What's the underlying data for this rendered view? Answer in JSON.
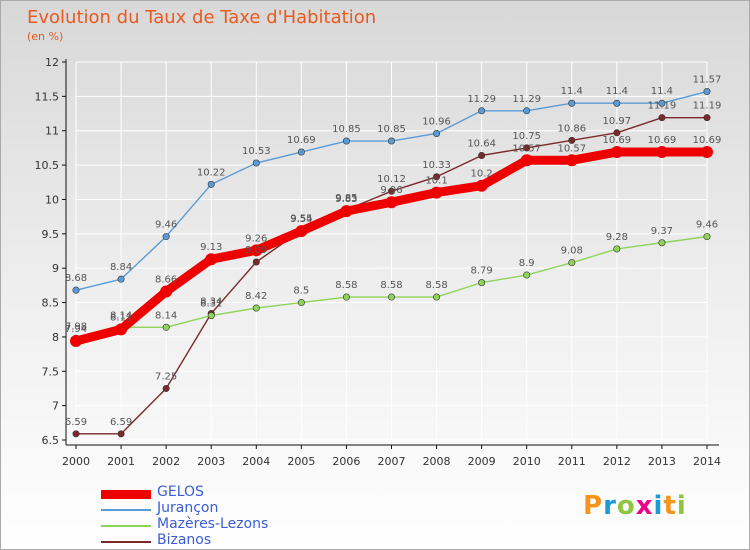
{
  "header": {
    "title": "Evolution du Taux de Taxe d'Habitation",
    "unit": "(en %)"
  },
  "logo": {
    "text": "Proxiti",
    "colors": [
      "#f7941d",
      "#1c9ad6",
      "#8dc63f",
      "#ec008c",
      "#1c9ad6",
      "#f7941d",
      "#8dc63f"
    ]
  },
  "chart_data": {
    "type": "line",
    "x": [
      "2000",
      "2001",
      "2002",
      "2003",
      "2004",
      "2005",
      "2006",
      "2007",
      "2008",
      "2009",
      "2010",
      "2011",
      "2012",
      "2013",
      "2014"
    ],
    "ylim": [
      6.5,
      12
    ],
    "yticks": [
      "6.5",
      "7",
      "7.5",
      "8",
      "8.5",
      "9",
      "9.5",
      "10",
      "10.5",
      "11",
      "11.5",
      "12"
    ],
    "grid": true,
    "legend_position": "bottom-left",
    "series": [
      {
        "name": "GELOS",
        "color": "#ee0000",
        "values": [
          7.94,
          8.11,
          8.66,
          9.13,
          9.26,
          9.54,
          9.83,
          9.96,
          10.1,
          10.2,
          10.57,
          10.57,
          10.69,
          10.69,
          10.69
        ],
        "labels": [
          "7.94",
          "8.11",
          "8.66",
          "9.13",
          "9.26",
          "9.54",
          "9.83",
          "9.96",
          "10.1",
          "10.2",
          "10.57",
          "10.57",
          "10.69",
          "10.69",
          "10.69"
        ]
      },
      {
        "name": "Jurançon",
        "color": "#5b9bd5",
        "values": [
          8.68,
          8.84,
          9.46,
          10.22,
          10.53,
          10.69,
          10.85,
          10.85,
          10.96,
          11.29,
          11.29,
          11.4,
          11.4,
          11.4,
          11.57
        ],
        "labels": [
          "8.68",
          "8.84",
          "9.46",
          "10.22",
          "10.53",
          "10.69",
          "10.85",
          "10.85",
          "10.96",
          "11.29",
          "11.29",
          "11.4",
          "11.4",
          "11.4",
          "11.57"
        ]
      },
      {
        "name": "Mazères-Lezons",
        "color": "#8fd35a",
        "values": [
          7.98,
          8.14,
          8.14,
          8.31,
          8.42,
          8.5,
          8.58,
          8.58,
          8.58,
          8.79,
          8.9,
          9.08,
          9.28,
          9.37,
          9.46
        ],
        "labels": [
          "7.98",
          "8.14",
          "8.14",
          "8.31",
          "8.42",
          "8.5",
          "8.58",
          "8.58",
          "8.58",
          "8.79",
          "8.9",
          "9.08",
          "9.28",
          "9.37",
          "9.46"
        ]
      },
      {
        "name": "Bizanos",
        "color": "#7a2a2a",
        "values": [
          6.59,
          6.59,
          7.25,
          8.34,
          9.09,
          9.55,
          9.85,
          10.12,
          10.33,
          10.64,
          10.75,
          10.86,
          10.97,
          11.19,
          11.19
        ],
        "labels": [
          "6.59",
          "6.59",
          "7.25",
          "8.34",
          "9.09",
          "9.55",
          "9.85",
          "10.12",
          "10.33",
          "10.64",
          "10.75",
          "10.86",
          "10.97",
          "11.19",
          "11.19"
        ]
      }
    ]
  }
}
